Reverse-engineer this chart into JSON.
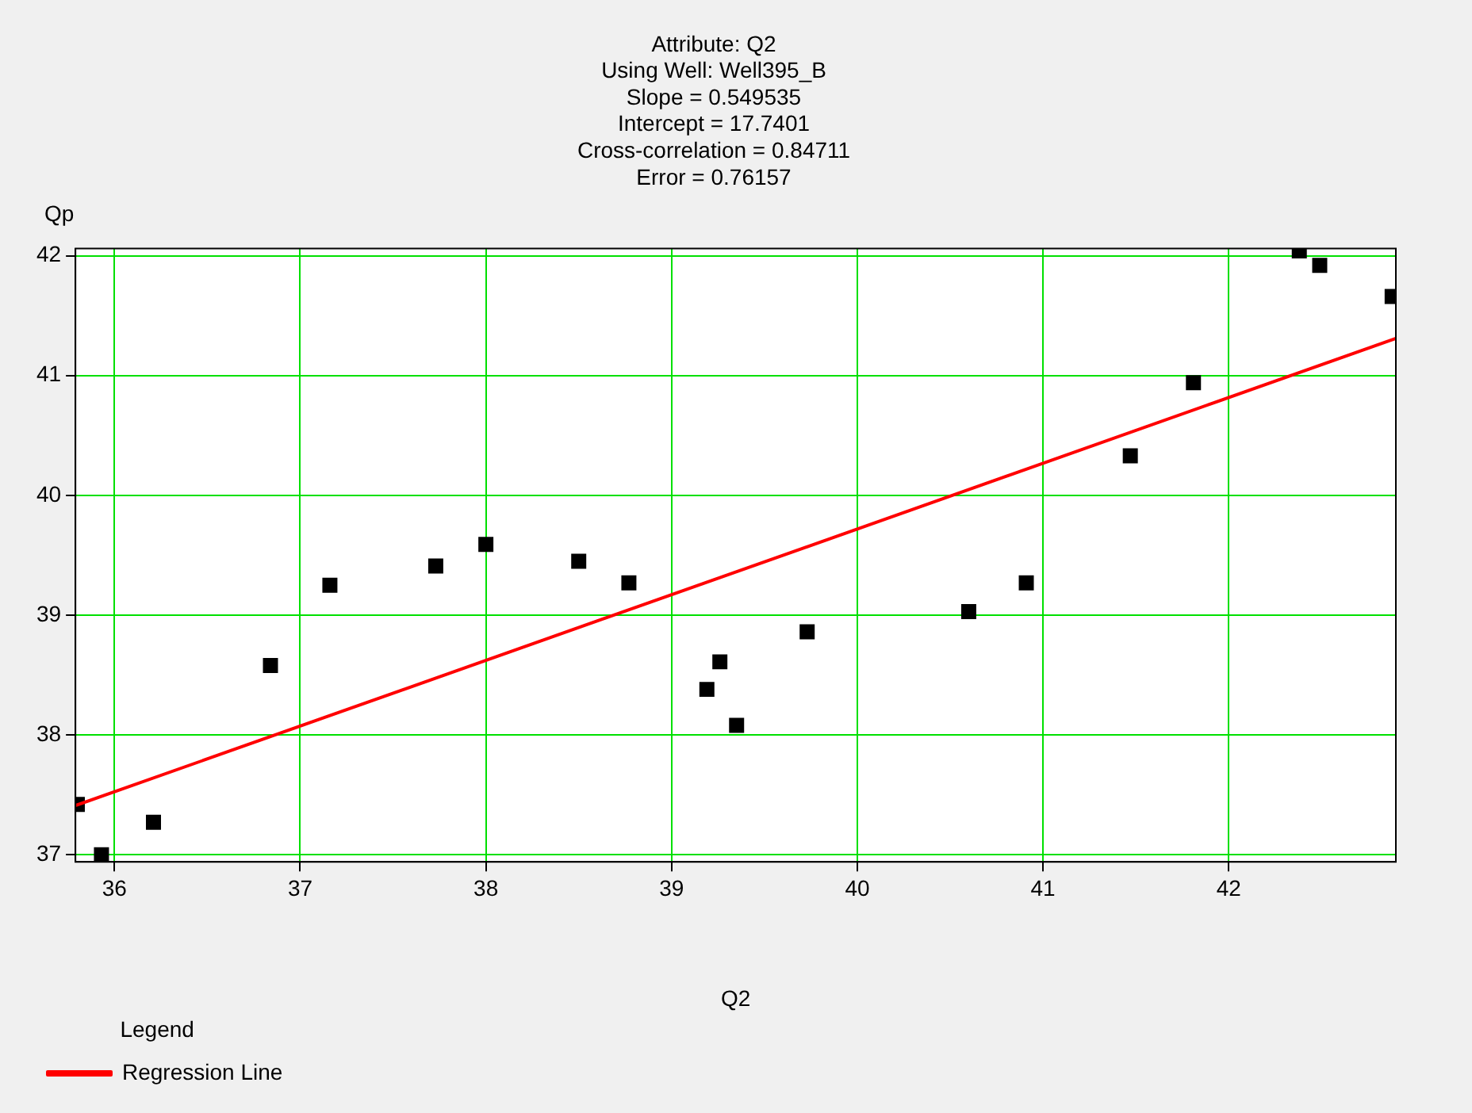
{
  "chart_data": {
    "type": "scatter",
    "title": "Attribute: Q2\nUsing Well: Well395_B\nSlope = 0.549535\nIntercept = 17.7401\nCross-correlation = 0.84711\nError = 0.76157",
    "xlabel": "Q2",
    "ylabel": "Qp",
    "legend_title": "Legend",
    "xlim": [
      35.79,
      42.9
    ],
    "ylim": [
      36.94,
      42.06
    ],
    "xticks": [
      36,
      37,
      38,
      39,
      40,
      41,
      42
    ],
    "yticks": [
      37,
      38,
      39,
      40,
      41,
      42
    ],
    "grid": true,
    "legend": "bottom left",
    "marker": "square",
    "series": [
      {
        "color": "#000000",
        "x": [
          35.8,
          35.93,
          36.21,
          36.84,
          37.16,
          37.73,
          38.0,
          38.5,
          38.77,
          39.19,
          39.26,
          39.35,
          39.73,
          40.6,
          40.91,
          41.47,
          41.81,
          42.38,
          42.49,
          42.88
        ],
        "values": [
          37.42,
          37.0,
          37.27,
          38.58,
          39.25,
          39.41,
          39.59,
          39.45,
          39.27,
          38.38,
          38.61,
          38.08,
          38.86,
          39.03,
          39.27,
          40.33,
          40.94,
          42.04,
          41.92,
          41.66
        ]
      },
      {
        "type": "line",
        "name": "Regression Line",
        "color": "#ff0000",
        "x": [
          35.79,
          42.9
        ],
        "values": [
          37.41,
          41.31
        ],
        "marker": "none"
      }
    ]
  }
}
